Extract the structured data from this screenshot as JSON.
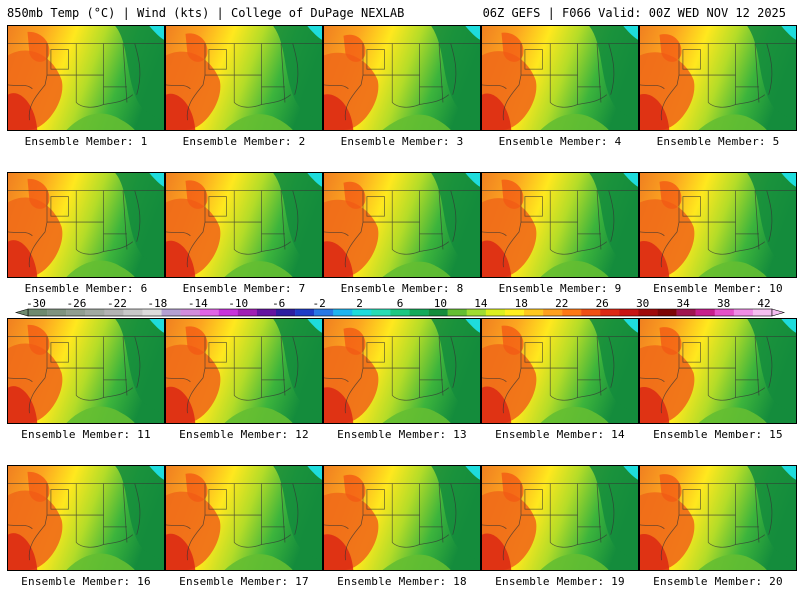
{
  "header": {
    "title_left": "850mb Temp (°C) | Wind (kts) | College of DuPage NEXLAB",
    "title_right": "06Z GEFS | F066 Valid: 00Z WED NOV 12 2025"
  },
  "colorbar": {
    "tick_labels": [
      "-30",
      "-26",
      "-22",
      "-18",
      "-14",
      "-10",
      "-6",
      "-2",
      "2",
      "6",
      "10",
      "14",
      "18",
      "22",
      "26",
      "30",
      "34",
      "38",
      "42"
    ],
    "colors": [
      "#6e8a6e",
      "#7f937f",
      "#909e90",
      "#a1a9a1",
      "#b3b3b3",
      "#c8c8c8",
      "#dcdcdc",
      "#b4a0d2",
      "#d28cdc",
      "#e164e6",
      "#c832dc",
      "#a01eb4",
      "#6414a0",
      "#2d1ea0",
      "#1e3cc8",
      "#2878e6",
      "#1eb4f0",
      "#1edcdc",
      "#28dcb4",
      "#1ec882",
      "#14aa5a",
      "#148c3c",
      "#64be32",
      "#a0dc32",
      "#dcf01e",
      "#fff01e",
      "#ffc81e",
      "#ffa01e",
      "#ff7814",
      "#f05014",
      "#dc2814",
      "#c81414",
      "#a00a0a",
      "#7d0505",
      "#a01450",
      "#c81e8c",
      "#e650c8",
      "#f08ce6",
      "#f5bef0"
    ]
  },
  "members": [
    {
      "caption": "Ensemble Member: 1"
    },
    {
      "caption": "Ensemble Member: 2"
    },
    {
      "caption": "Ensemble Member: 3"
    },
    {
      "caption": "Ensemble Member: 4"
    },
    {
      "caption": "Ensemble Member: 5"
    },
    {
      "caption": "Ensemble Member: 6"
    },
    {
      "caption": "Ensemble Member: 7"
    },
    {
      "caption": "Ensemble Member: 8"
    },
    {
      "caption": "Ensemble Member: 9"
    },
    {
      "caption": "Ensemble Member: 10"
    },
    {
      "caption": "Ensemble Member: 11"
    },
    {
      "caption": "Ensemble Member: 12"
    },
    {
      "caption": "Ensemble Member: 13"
    },
    {
      "caption": "Ensemble Member: 14"
    },
    {
      "caption": "Ensemble Member: 15"
    },
    {
      "caption": "Ensemble Member: 16"
    },
    {
      "caption": "Ensemble Member: 17"
    },
    {
      "caption": "Ensemble Member: 18"
    },
    {
      "caption": "Ensemble Member: 19"
    },
    {
      "caption": "Ensemble Member: 20"
    }
  ]
}
